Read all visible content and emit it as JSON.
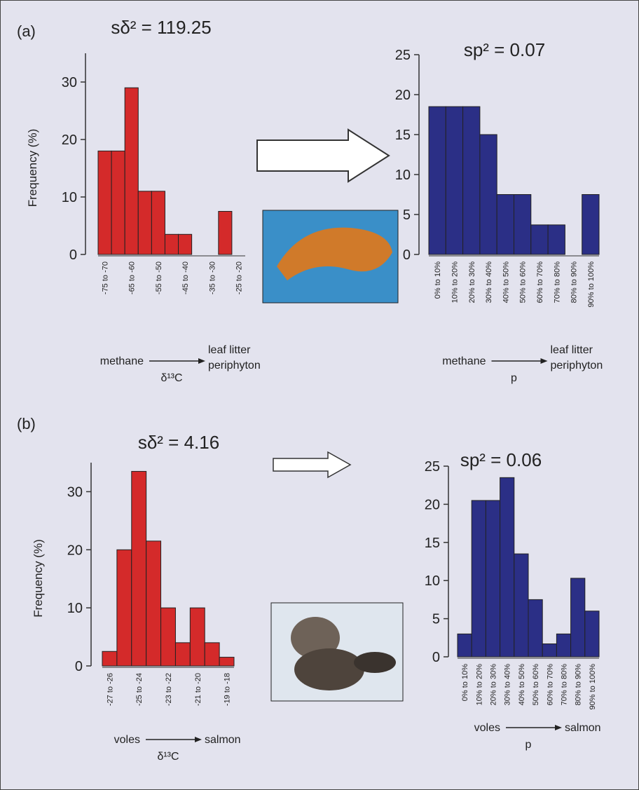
{
  "panels": [
    "(a)",
    "(b)"
  ],
  "chart_data": [
    {
      "type": "bar",
      "title": "sδ² = 119.25",
      "y_label": "Frequency (%)",
      "color": "#d42a2a",
      "categories": [
        "-75 to -70",
        null,
        "-65 to -60",
        null,
        "-55 to -50",
        null,
        "-45 to -40",
        null,
        "-35 to -30",
        null,
        "-25 to -20"
      ],
      "values": [
        18,
        18,
        29,
        11,
        11,
        3.5,
        3.5,
        0,
        0,
        7.5,
        0
      ],
      "ylim": [
        0,
        35
      ],
      "yticks": [
        0,
        10,
        20,
        30
      ],
      "annotation": {
        "from": "methane",
        "variable": "δ¹³C",
        "to": [
          "leaf litter",
          "periphyton"
        ]
      }
    },
    {
      "type": "bar",
      "title": "sp² = 0.07",
      "color": "#2b2f86",
      "categories": [
        "0% to 10%",
        "10% to 20%",
        "20% to 30%",
        "30% to 40%",
        "40% to 50%",
        "50% to 60%",
        "60% to 70%",
        "70% to 80%",
        "80% to 90%",
        "90% to 100%"
      ],
      "values": [
        18.5,
        18.5,
        18.5,
        15,
        7.5,
        7.5,
        3.7,
        3.7,
        0,
        7.5
      ],
      "ylim": [
        0,
        25
      ],
      "yticks": [
        0,
        5,
        10,
        15,
        20,
        25
      ],
      "annotation": {
        "from": "methane",
        "variable": "p",
        "to": [
          "leaf litter",
          "periphyton"
        ]
      }
    },
    {
      "type": "bar",
      "title": "sδ² = 4.16",
      "y_label": "Frequency (%)",
      "color": "#d42a2a",
      "categories": [
        "-27 to -26",
        null,
        "-25 to -24",
        null,
        "-23 to -22",
        null,
        "-21 to -20",
        null,
        "-19 to -18"
      ],
      "values": [
        2.5,
        20,
        33.5,
        21.5,
        10,
        4,
        10,
        4,
        1.5
      ],
      "ylim": [
        0,
        35
      ],
      "yticks": [
        0,
        10,
        20,
        30
      ],
      "annotation": {
        "from": "voles",
        "variable": "δ¹³C",
        "to": [
          "salmon"
        ]
      }
    },
    {
      "type": "bar",
      "title": "sp² = 0.06",
      "color": "#2b2f86",
      "categories": [
        "0% to 10%",
        "10% to 20%",
        "20% to 30%",
        "30% to 40%",
        "40% to 50%",
        "50% to 60%",
        "60% to 70%",
        "70% to 80%",
        "80% to 90%",
        "90% to 100%"
      ],
      "values": [
        3,
        20.5,
        20.5,
        23.5,
        13.5,
        7.5,
        1.7,
        3,
        10.3,
        6
      ],
      "ylim": [
        0,
        25
      ],
      "yticks": [
        0,
        5,
        10,
        15,
        20,
        25
      ],
      "annotation": {
        "from": "voles",
        "variable": "p",
        "to": [
          "salmon"
        ]
      }
    }
  ]
}
